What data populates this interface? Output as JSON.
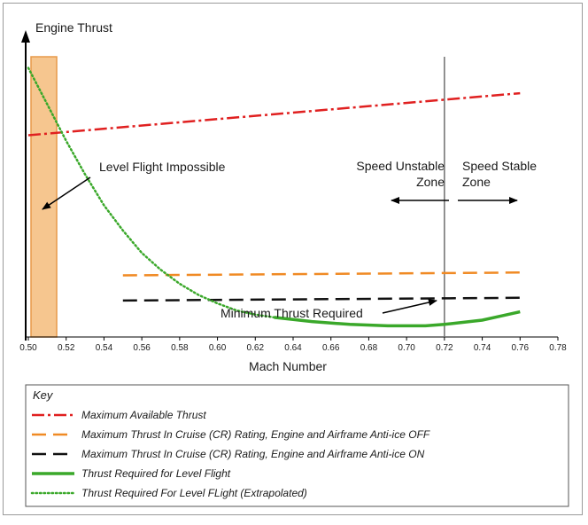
{
  "chart_data": {
    "type": "line",
    "ylabel": "Engine Thrust",
    "xlabel": "Mach Number",
    "xlim": [
      0.5,
      0.78
    ],
    "ylim": [
      0,
      1
    ],
    "x_ticks": [
      "0.50",
      "0.52",
      "0.54",
      "0.56",
      "0.58",
      "0.60",
      "0.62",
      "0.64",
      "0.66",
      "0.68",
      "0.70",
      "0.72",
      "0.74",
      "0.76",
      "0.78"
    ],
    "series": [
      {
        "name": "Maximum Available Thrust",
        "color": "#e02020",
        "style": "dash-dot",
        "x": [
          0.5,
          0.76
        ],
        "y": [
          0.72,
          0.87
        ]
      },
      {
        "name": "Maximum Thrust  In Cruise (CR) Rating, Engine and Airframe Anti-ice OFF",
        "color": "#f08a24",
        "style": "dashed",
        "x": [
          0.55,
          0.76
        ],
        "y": [
          0.22,
          0.23
        ]
      },
      {
        "name": "Maximum Thrust  In Cruise (CR) Rating, Engine and Airframe Anti-ice ON",
        "color": "#111111",
        "style": "dashed",
        "x": [
          0.55,
          0.76
        ],
        "y": [
          0.13,
          0.14
        ]
      },
      {
        "name": "Thrust Required for  Level Flight",
        "color": "#3aa82a",
        "style": "solid",
        "x": [
          0.63,
          0.65,
          0.67,
          0.69,
          0.71,
          0.72,
          0.74,
          0.75,
          0.76
        ],
        "y": [
          0.07,
          0.055,
          0.045,
          0.04,
          0.04,
          0.045,
          0.06,
          0.075,
          0.09
        ]
      },
      {
        "name": "Thrust Required For Level FLight (Extrapolated)",
        "color": "#3aa82a",
        "style": "dotted",
        "x": [
          0.5,
          0.51,
          0.52,
          0.53,
          0.54,
          0.55,
          0.56,
          0.57,
          0.58,
          0.59,
          0.6,
          0.61,
          0.62,
          0.63
        ],
        "y": [
          0.96,
          0.83,
          0.7,
          0.58,
          0.47,
          0.38,
          0.3,
          0.24,
          0.19,
          0.15,
          0.12,
          0.095,
          0.08,
          0.07
        ]
      }
    ],
    "vertical_line_x": 0.72,
    "shaded_region_x": [
      0.5,
      0.515
    ],
    "annotations": {
      "impossible": "Level Flight Impossible",
      "unstable_1": "Speed Unstable",
      "unstable_2": "Zone",
      "stable_1": "Speed Stable",
      "stable_2": "Zone",
      "minimum": "Minimum Thrust Required"
    },
    "key_title": "Key"
  }
}
